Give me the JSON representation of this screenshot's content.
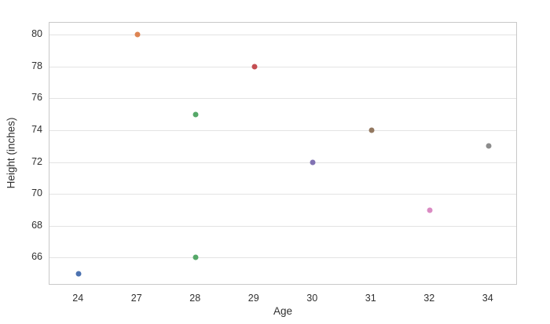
{
  "chart_data": {
    "type": "scatter",
    "title": "",
    "xlabel": "Age",
    "ylabel": "Height (inches)",
    "x_categories": [
      "24",
      "27",
      "28",
      "29",
      "30",
      "31",
      "32",
      "34"
    ],
    "y_ticks": [
      66,
      68,
      70,
      72,
      74,
      76,
      78,
      80
    ],
    "ylim": [
      64.25,
      80.75
    ],
    "grid": "horizontal-only",
    "legend": "none",
    "plot_background": "#ffffff",
    "gridline_color": "#e3e3e3",
    "border_color": "#c9c9c9",
    "points": [
      {
        "age": "24",
        "height": 65,
        "color": "#4c72b0",
        "color_name": "blue"
      },
      {
        "age": "27",
        "height": 80,
        "color": "#dd8452",
        "color_name": "orange"
      },
      {
        "age": "28",
        "height": 75,
        "color": "#55a868",
        "color_name": "green"
      },
      {
        "age": "28",
        "height": 66,
        "color": "#55a868",
        "color_name": "green"
      },
      {
        "age": "29",
        "height": 78,
        "color": "#c44e52",
        "color_name": "red"
      },
      {
        "age": "30",
        "height": 72,
        "color": "#8172b3",
        "color_name": "purple"
      },
      {
        "age": "31",
        "height": 74,
        "color": "#937860",
        "color_name": "brown"
      },
      {
        "age": "32",
        "height": 69,
        "color": "#da8bc3",
        "color_name": "pink"
      },
      {
        "age": "34",
        "height": 73,
        "color": "#8c8c8c",
        "color_name": "gray"
      }
    ]
  }
}
